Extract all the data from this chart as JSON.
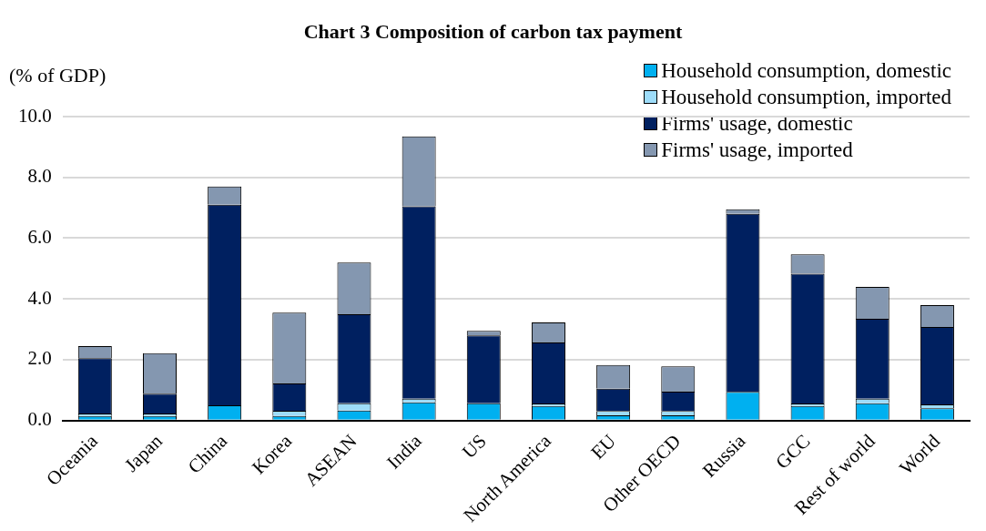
{
  "chart_data": {
    "type": "bar",
    "title": "Chart 3 Composition of carbon tax payment",
    "ylabel": "(% of GDP)",
    "categories": [
      "Oceania",
      "Japan",
      "China",
      "Korea",
      "ASEAN",
      "India",
      "US",
      "North America",
      "EU",
      "Other OECD",
      "Russia",
      "GCC",
      "Rest of world",
      "World"
    ],
    "stacked": true,
    "legend": "top right",
    "grid": "y",
    "ylim": [
      0,
      10
    ],
    "yticks": [
      {
        "value": 0,
        "label": "0.0"
      },
      {
        "value": 2,
        "label": "2.0"
      },
      {
        "value": 4,
        "label": "4.0"
      },
      {
        "value": 6,
        "label": "6.0"
      },
      {
        "value": 8,
        "label": "8.0"
      },
      {
        "value": 10,
        "label": "10.0"
      }
    ],
    "series": [
      {
        "name": "Household consumption, domestic",
        "color": "#00b0f0",
        "values": [
          0.15,
          0.15,
          0.5,
          0.15,
          0.33,
          0.6,
          0.57,
          0.48,
          0.17,
          0.17,
          0.94,
          0.48,
          0.57,
          0.4
        ]
      },
      {
        "name": "Household consumption, imported",
        "color": "#9ddcf9",
        "values": [
          0.08,
          0.08,
          null,
          0.17,
          0.24,
          0.12,
          null,
          0.08,
          0.14,
          0.14,
          null,
          0.08,
          0.15,
          0.13
        ]
      },
      {
        "name": "Firms' usage, domestic",
        "color": "#002060",
        "values": [
          1.82,
          0.65,
          6.6,
          0.9,
          2.93,
          6.33,
          2.23,
          2.01,
          0.74,
          0.64,
          5.86,
          4.27,
          2.63,
          2.55
        ]
      },
      {
        "name": "Firms' usage, imported",
        "color": "#8497b0",
        "values": [
          0.4,
          1.34,
          0.6,
          2.33,
          1.7,
          2.3,
          0.15,
          0.66,
          0.78,
          0.83,
          0.15,
          0.64,
          1.05,
          0.72
        ]
      }
    ]
  }
}
